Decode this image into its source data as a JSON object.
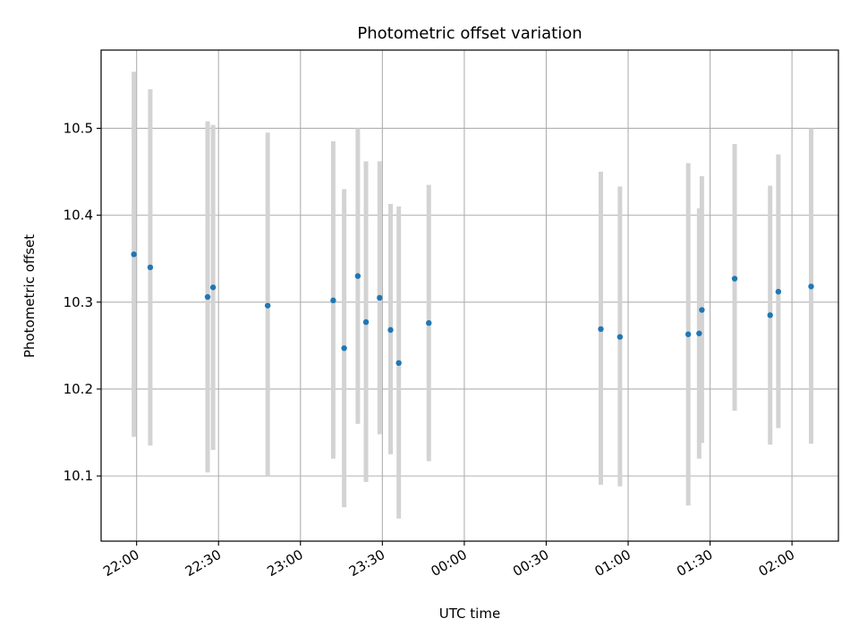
{
  "chart_data": {
    "type": "scatter",
    "title": "Photometric offset variation",
    "xlabel": "UTC time",
    "ylabel": "Photometric offset",
    "xlim": [
      "21:47",
      "02:17"
    ],
    "ylim": [
      10.025,
      10.59
    ],
    "x_ticks": [
      "22:00",
      "22:30",
      "23:00",
      "23:30",
      "00:00",
      "00:30",
      "01:00",
      "01:30",
      "02:00"
    ],
    "y_ticks": [
      "10.1",
      "10.2",
      "10.3",
      "10.4",
      "10.5"
    ],
    "grid": true,
    "errorbar_color": "#d3d3d3",
    "point_color": "#1f77b4",
    "points": [
      {
        "t": "21:59",
        "y": 10.355,
        "lo": 10.145,
        "hi": 10.565
      },
      {
        "t": "22:05",
        "y": 10.34,
        "lo": 10.135,
        "hi": 10.545
      },
      {
        "t": "22:26",
        "y": 10.306,
        "lo": 10.104,
        "hi": 10.508
      },
      {
        "t": "22:28",
        "y": 10.317,
        "lo": 10.13,
        "hi": 10.504
      },
      {
        "t": "22:48",
        "y": 10.296,
        "lo": 10.1,
        "hi": 10.495
      },
      {
        "t": "23:12",
        "y": 10.302,
        "lo": 10.12,
        "hi": 10.485
      },
      {
        "t": "23:16",
        "y": 10.247,
        "lo": 10.064,
        "hi": 10.43
      },
      {
        "t": "23:21",
        "y": 10.33,
        "lo": 10.16,
        "hi": 10.5
      },
      {
        "t": "23:24",
        "y": 10.277,
        "lo": 10.093,
        "hi": 10.462
      },
      {
        "t": "23:29",
        "y": 10.305,
        "lo": 10.148,
        "hi": 10.462
      },
      {
        "t": "23:33",
        "y": 10.268,
        "lo": 10.125,
        "hi": 10.413
      },
      {
        "t": "23:36",
        "y": 10.23,
        "lo": 10.051,
        "hi": 10.41
      },
      {
        "t": "23:47",
        "y": 10.276,
        "lo": 10.117,
        "hi": 10.435
      },
      {
        "t": "00:50",
        "y": 10.269,
        "lo": 10.09,
        "hi": 10.45
      },
      {
        "t": "00:57",
        "y": 10.26,
        "lo": 10.088,
        "hi": 10.433
      },
      {
        "t": "01:22",
        "y": 10.263,
        "lo": 10.066,
        "hi": 10.46
      },
      {
        "t": "01:26",
        "y": 10.264,
        "lo": 10.12,
        "hi": 10.408
      },
      {
        "t": "01:27",
        "y": 10.291,
        "lo": 10.138,
        "hi": 10.445
      },
      {
        "t": "01:39",
        "y": 10.327,
        "lo": 10.175,
        "hi": 10.482
      },
      {
        "t": "01:52",
        "y": 10.285,
        "lo": 10.136,
        "hi": 10.434
      },
      {
        "t": "01:55",
        "y": 10.312,
        "lo": 10.155,
        "hi": 10.47
      },
      {
        "t": "02:07",
        "y": 10.318,
        "lo": 10.137,
        "hi": 10.5
      }
    ]
  }
}
